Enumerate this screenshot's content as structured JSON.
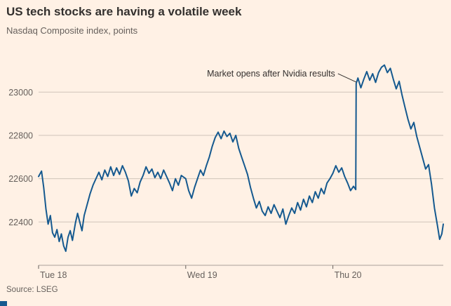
{
  "colors": {
    "background": "#FFF1E5",
    "line": "#15598F",
    "grid": "#CFC4B9",
    "axis": "#A8A099",
    "tick": "#66605C",
    "title_text": "#33302E",
    "muted_text": "#66605C"
  },
  "chart_data": {
    "type": "line",
    "title": "US tech stocks are having a volatile week",
    "subtitle": "Nasdaq Composite index, points",
    "source": "Source: LSEG",
    "xlabel": "",
    "ylabel": "points",
    "grid": true,
    "legend": false,
    "xlim": [
      0,
      2.75
    ],
    "ylim": [
      22200,
      23150
    ],
    "yticks": [
      22400,
      22600,
      22800,
      23000
    ],
    "xticks": [
      {
        "t": 0,
        "label": "Tue 18"
      },
      {
        "t": 1,
        "label": "Wed 19"
      },
      {
        "t": 2,
        "label": "Thu 20"
      }
    ],
    "annotation": {
      "text": "Market opens after Nvidia results",
      "t": 2.158,
      "value": 23040
    },
    "series": [
      {
        "name": "Nasdaq Composite index",
        "points": [
          [
            0,
            22610
          ],
          [
            0.02,
            22635
          ],
          [
            0.035,
            22560
          ],
          [
            0.05,
            22460
          ],
          [
            0.065,
            22390
          ],
          [
            0.08,
            22430
          ],
          [
            0.095,
            22350
          ],
          [
            0.11,
            22330
          ],
          [
            0.125,
            22365
          ],
          [
            0.14,
            22310
          ],
          [
            0.155,
            22345
          ],
          [
            0.17,
            22290
          ],
          [
            0.185,
            22265
          ],
          [
            0.2,
            22330
          ],
          [
            0.215,
            22360
          ],
          [
            0.23,
            22315
          ],
          [
            0.25,
            22395
          ],
          [
            0.265,
            22440
          ],
          [
            0.28,
            22400
          ],
          [
            0.295,
            22360
          ],
          [
            0.31,
            22430
          ],
          [
            0.33,
            22480
          ],
          [
            0.35,
            22530
          ],
          [
            0.37,
            22570
          ],
          [
            0.39,
            22600
          ],
          [
            0.41,
            22630
          ],
          [
            0.43,
            22595
          ],
          [
            0.45,
            22640
          ],
          [
            0.47,
            22610
          ],
          [
            0.49,
            22655
          ],
          [
            0.51,
            22615
          ],
          [
            0.53,
            22650
          ],
          [
            0.55,
            22620
          ],
          [
            0.57,
            22660
          ],
          [
            0.59,
            22630
          ],
          [
            0.61,
            22590
          ],
          [
            0.63,
            22520
          ],
          [
            0.65,
            22555
          ],
          [
            0.67,
            22535
          ],
          [
            0.69,
            22585
          ],
          [
            0.71,
            22615
          ],
          [
            0.73,
            22655
          ],
          [
            0.75,
            22625
          ],
          [
            0.77,
            22645
          ],
          [
            0.79,
            22605
          ],
          [
            0.81,
            22630
          ],
          [
            0.83,
            22600
          ],
          [
            0.85,
            22640
          ],
          [
            0.87,
            22610
          ],
          [
            0.89,
            22580
          ],
          [
            0.91,
            22545
          ],
          [
            0.93,
            22600
          ],
          [
            0.95,
            22570
          ],
          [
            0.97,
            22615
          ],
          [
            1,
            22600
          ],
          [
            1.02,
            22545
          ],
          [
            1.04,
            22510
          ],
          [
            1.06,
            22560
          ],
          [
            1.08,
            22600
          ],
          [
            1.1,
            22640
          ],
          [
            1.12,
            22615
          ],
          [
            1.14,
            22660
          ],
          [
            1.16,
            22700
          ],
          [
            1.18,
            22750
          ],
          [
            1.2,
            22790
          ],
          [
            1.22,
            22815
          ],
          [
            1.24,
            22785
          ],
          [
            1.26,
            22820
          ],
          [
            1.28,
            22795
          ],
          [
            1.3,
            22810
          ],
          [
            1.32,
            22770
          ],
          [
            1.34,
            22800
          ],
          [
            1.36,
            22740
          ],
          [
            1.38,
            22700
          ],
          [
            1.4,
            22660
          ],
          [
            1.42,
            22620
          ],
          [
            1.44,
            22560
          ],
          [
            1.46,
            22510
          ],
          [
            1.48,
            22465
          ],
          [
            1.5,
            22495
          ],
          [
            1.52,
            22450
          ],
          [
            1.54,
            22430
          ],
          [
            1.56,
            22470
          ],
          [
            1.58,
            22440
          ],
          [
            1.6,
            22480
          ],
          [
            1.62,
            22450
          ],
          [
            1.64,
            22420
          ],
          [
            1.66,
            22460
          ],
          [
            1.68,
            22390
          ],
          [
            1.7,
            22430
          ],
          [
            1.72,
            22465
          ],
          [
            1.74,
            22440
          ],
          [
            1.76,
            22490
          ],
          [
            1.78,
            22455
          ],
          [
            1.8,
            22505
          ],
          [
            1.82,
            22470
          ],
          [
            1.84,
            22520
          ],
          [
            1.86,
            22490
          ],
          [
            1.88,
            22540
          ],
          [
            1.9,
            22510
          ],
          [
            1.92,
            22555
          ],
          [
            1.94,
            22530
          ],
          [
            1.96,
            22580
          ],
          [
            1.98,
            22600
          ],
          [
            2,
            22625
          ],
          [
            2.02,
            22660
          ],
          [
            2.04,
            22630
          ],
          [
            2.06,
            22650
          ],
          [
            2.08,
            22610
          ],
          [
            2.1,
            22580
          ],
          [
            2.12,
            22545
          ],
          [
            2.14,
            22565
          ],
          [
            2.155,
            22550
          ],
          [
            2.158,
            23040
          ],
          [
            2.17,
            23065
          ],
          [
            2.19,
            23020
          ],
          [
            2.21,
            23060
          ],
          [
            2.23,
            23095
          ],
          [
            2.25,
            23055
          ],
          [
            2.27,
            23085
          ],
          [
            2.29,
            23045
          ],
          [
            2.31,
            23090
          ],
          [
            2.33,
            23115
          ],
          [
            2.35,
            23125
          ],
          [
            2.37,
            23090
          ],
          [
            2.39,
            23110
          ],
          [
            2.41,
            23060
          ],
          [
            2.43,
            23015
          ],
          [
            2.45,
            23050
          ],
          [
            2.47,
            22985
          ],
          [
            2.49,
            22930
          ],
          [
            2.51,
            22875
          ],
          [
            2.53,
            22830
          ],
          [
            2.55,
            22860
          ],
          [
            2.57,
            22795
          ],
          [
            2.59,
            22745
          ],
          [
            2.61,
            22695
          ],
          [
            2.63,
            22645
          ],
          [
            2.65,
            22665
          ],
          [
            2.67,
            22575
          ],
          [
            2.69,
            22465
          ],
          [
            2.71,
            22385
          ],
          [
            2.725,
            22320
          ],
          [
            2.74,
            22345
          ],
          [
            2.75,
            22390
          ]
        ]
      }
    ]
  }
}
